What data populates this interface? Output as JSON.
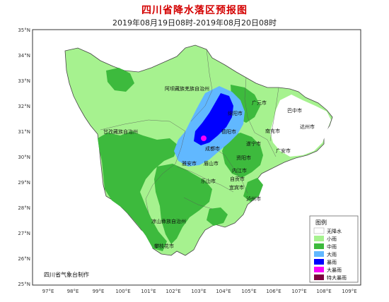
{
  "header": {
    "title": "四川省降水落区预报图",
    "subtitle": "2019年08月19日08时-2019年08月20日08时"
  },
  "axes": {
    "lat_labels": [
      "35°N",
      "34°N",
      "33°N",
      "32°N",
      "31°N",
      "30°N",
      "29°N",
      "28°N",
      "27°N",
      "26°N",
      "25°N"
    ],
    "lon_labels": [
      "97°E",
      "98°E",
      "99°E",
      "100°E",
      "101°E",
      "102°E",
      "103°E",
      "104°E",
      "105°E",
      "106°E",
      "107°E",
      "108°E",
      "109°E"
    ]
  },
  "regions": {
    "aba": "阿坝藏族羌族自治州",
    "ganzi": "甘孜藏族自治州",
    "liangshan": "凉山彝族自治州",
    "guangyuan": "广元市",
    "bazhong": "巴中市",
    "mianyang": "绵阳市",
    "dazhou": "达州市",
    "deyang": "德阳市",
    "nanchong": "南充市",
    "suining": "遂宁市",
    "guangan": "广安市",
    "chengdu": "成都市",
    "ziyang": "资阳市",
    "yaan": "雅安市",
    "meishan": "眉山市",
    "neijiang": "内江市",
    "leshan": "乐山市",
    "zigong": "自贡市",
    "yibin": "宜宾市",
    "luzhou": "泸州市",
    "panzhihua": "攀枝花市"
  },
  "maker": "四川省气象台制作",
  "legend": {
    "title": "图例",
    "items": [
      {
        "label": "无降水",
        "color": "#ffffff"
      },
      {
        "label": "小雨",
        "color": "#a6f28f"
      },
      {
        "label": "中雨",
        "color": "#3dba3d"
      },
      {
        "label": "大雨",
        "color": "#61b8ff"
      },
      {
        "label": "暴雨",
        "color": "#0000ff"
      },
      {
        "label": "大暴雨",
        "color": "#fa00fa"
      },
      {
        "label": "特大暴雨",
        "color": "#800040"
      }
    ]
  }
}
